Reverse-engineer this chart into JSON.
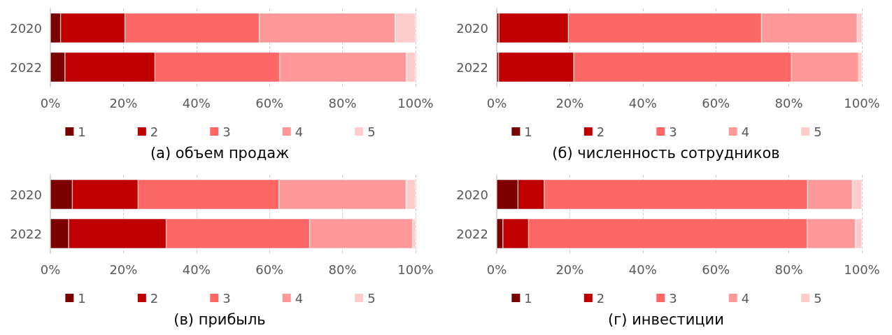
{
  "chart_data": [
    {
      "type": "bar",
      "title": "(а) объем продаж",
      "orientation": "horizontal",
      "stacked": true,
      "categories": [
        "2020",
        "2022"
      ],
      "xlim": [
        0,
        100
      ],
      "xticks": [
        {
          "value": 0,
          "label": "0%"
        },
        {
          "value": 20,
          "label": "20%"
        },
        {
          "value": 40,
          "label": "40%"
        },
        {
          "value": 60,
          "label": "60%"
        },
        {
          "value": 80,
          "label": "80%"
        },
        {
          "value": 100,
          "label": "100%"
        }
      ],
      "grid": "x",
      "legend": "bottom",
      "series": [
        {
          "name": "1",
          "color": "#7b0000",
          "values": [
            2.8,
            4.0
          ]
        },
        {
          "name": "2",
          "color": "#c00000",
          "values": [
            17.6,
            24.6
          ]
        },
        {
          "name": "3",
          "color": "#ff6666",
          "values": [
            36.8,
            34.2
          ]
        },
        {
          "name": "4",
          "color": "#ff9999",
          "values": [
            37.2,
            34.7
          ]
        },
        {
          "name": "5",
          "color": "#ffcccc",
          "values": [
            5.6,
            2.5
          ]
        }
      ]
    },
    {
      "type": "bar",
      "title": "(б) численность сотрудников",
      "orientation": "horizontal",
      "stacked": true,
      "categories": [
        "2020",
        "2022"
      ],
      "xlim": [
        0,
        100
      ],
      "xticks": [
        {
          "value": 0,
          "label": "0%"
        },
        {
          "value": 20,
          "label": "20%"
        },
        {
          "value": 40,
          "label": "40%"
        },
        {
          "value": 60,
          "label": "60%"
        },
        {
          "value": 80,
          "label": "80%"
        },
        {
          "value": 100,
          "label": "100%"
        }
      ],
      "grid": "x",
      "legend": "bottom",
      "series": [
        {
          "name": "1",
          "color": "#7b0000",
          "values": [
            0.6,
            0.5
          ]
        },
        {
          "name": "2",
          "color": "#c00000",
          "values": [
            19.0,
            20.6
          ]
        },
        {
          "name": "3",
          "color": "#ff6666",
          "values": [
            52.9,
            59.6
          ]
        },
        {
          "name": "4",
          "color": "#ff9999",
          "values": [
            26.2,
            18.4
          ]
        },
        {
          "name": "5",
          "color": "#ffcccc",
          "values": [
            1.3,
            0.9
          ]
        }
      ]
    },
    {
      "type": "bar",
      "title": "(в) прибыль",
      "orientation": "horizontal",
      "stacked": true,
      "categories": [
        "2020",
        "2022"
      ],
      "xlim": [
        0,
        100
      ],
      "xticks": [
        {
          "value": 0,
          "label": "0%"
        },
        {
          "value": 20,
          "label": "20%"
        },
        {
          "value": 40,
          "label": "40%"
        },
        {
          "value": 60,
          "label": "60%"
        },
        {
          "value": 80,
          "label": "80%"
        },
        {
          "value": 100,
          "label": "100%"
        }
      ],
      "grid": "x",
      "legend": "bottom",
      "series": [
        {
          "name": "1",
          "color": "#7b0000",
          "values": [
            6.0,
            5.0
          ]
        },
        {
          "name": "2",
          "color": "#c00000",
          "values": [
            18.0,
            26.7
          ]
        },
        {
          "name": "3",
          "color": "#ff6666",
          "values": [
            38.6,
            39.3
          ]
        },
        {
          "name": "4",
          "color": "#ff9999",
          "values": [
            34.8,
            28.2
          ]
        },
        {
          "name": "5",
          "color": "#ffcccc",
          "values": [
            2.6,
            0.8
          ]
        }
      ]
    },
    {
      "type": "bar",
      "title": "(г) инвестиции",
      "orientation": "horizontal",
      "stacked": true,
      "categories": [
        "2020",
        "2022"
      ],
      "xlim": [
        0,
        100
      ],
      "xticks": [
        {
          "value": 0,
          "label": "0%"
        },
        {
          "value": 20,
          "label": "20%"
        },
        {
          "value": 40,
          "label": "40%"
        },
        {
          "value": 60,
          "label": "60%"
        },
        {
          "value": 80,
          "label": "80%"
        },
        {
          "value": 100,
          "label": "100%"
        }
      ],
      "grid": "x",
      "legend": "bottom",
      "series": [
        {
          "name": "1",
          "color": "#7b0000",
          "values": [
            5.8,
            1.7
          ]
        },
        {
          "name": "2",
          "color": "#c00000",
          "values": [
            7.2,
            7.0
          ]
        },
        {
          "name": "3",
          "color": "#ff6666",
          "values": [
            72.1,
            76.3
          ]
        },
        {
          "name": "4",
          "color": "#ff9999",
          "values": [
            12.3,
            13.2
          ]
        },
        {
          "name": "5",
          "color": "#ffcccc",
          "values": [
            2.6,
            1.8
          ]
        }
      ]
    }
  ]
}
